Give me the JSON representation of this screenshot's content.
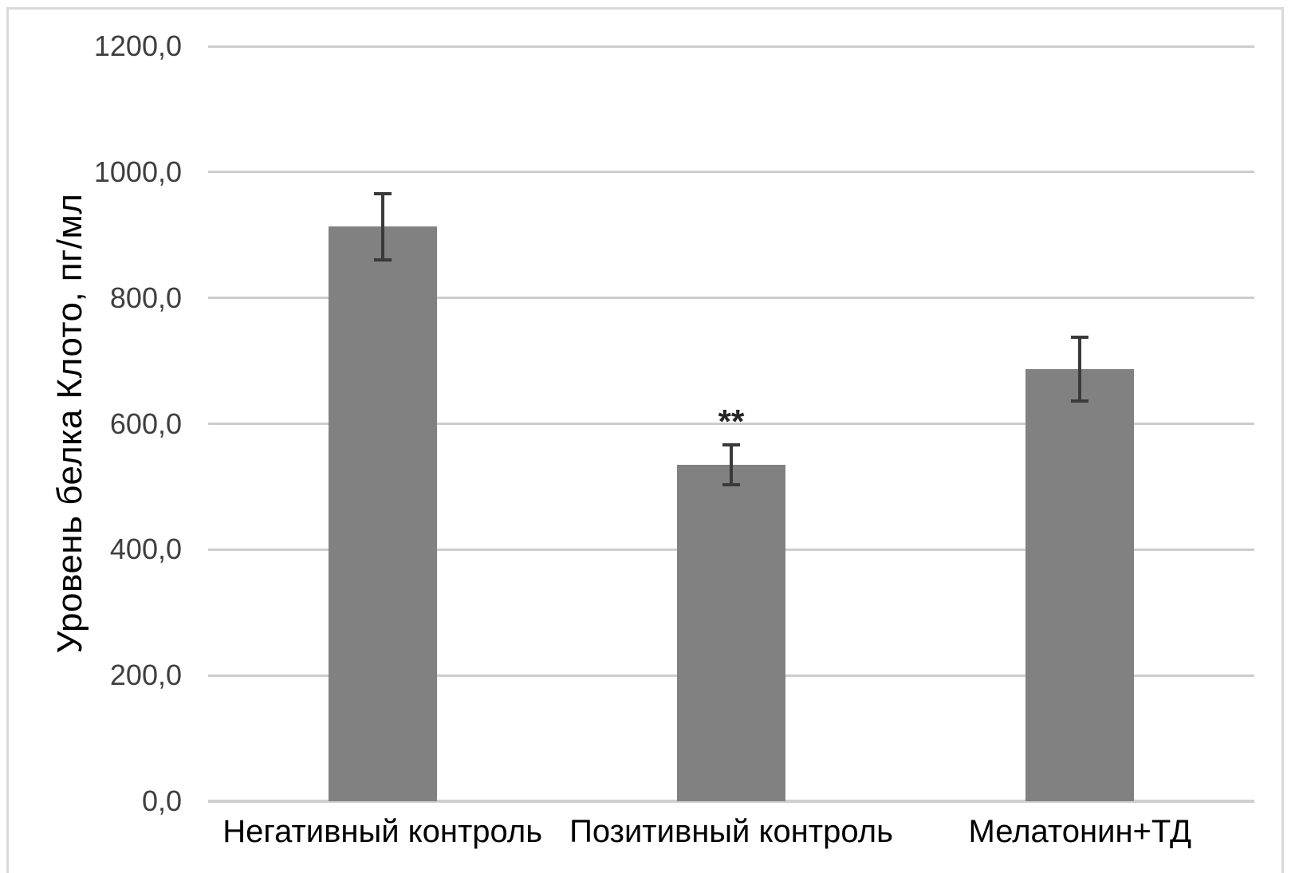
{
  "chart_data": {
    "type": "bar",
    "title": "",
    "xlabel": "",
    "ylabel": "Уровень белка Клото, пг/мл",
    "categories": [
      "Негативный контроль",
      "Позитивный контроль",
      "Мелатонин+ТД"
    ],
    "values": [
      913,
      535,
      687
    ],
    "error_bars_plus_minus": [
      52,
      32,
      51
    ],
    "annotations": [
      {
        "category_index": 1,
        "text": "**"
      }
    ],
    "ylim": [
      0,
      1200
    ],
    "yticks": [
      {
        "value": 0,
        "label": "0,0"
      },
      {
        "value": 200,
        "label": "200,0"
      },
      {
        "value": 400,
        "label": "400,0"
      },
      {
        "value": 600,
        "label": "600,0"
      },
      {
        "value": 800,
        "label": "800,0"
      },
      {
        "value": 1000,
        "label": "1000,0"
      },
      {
        "value": 1200,
        "label": "1200,0"
      }
    ],
    "grid": "horizontal",
    "legend_position": "none",
    "colors": {
      "bar": "#818181",
      "gridline": "#cdcdcd",
      "axis_line": "#d0d0d0",
      "error_bar": "#3a3a3a",
      "tick_label": "#3f3f3f",
      "category_label": "#000000",
      "annotation": "#262626",
      "frame_border": "#d9d9d9",
      "background": "#ffffff"
    }
  }
}
